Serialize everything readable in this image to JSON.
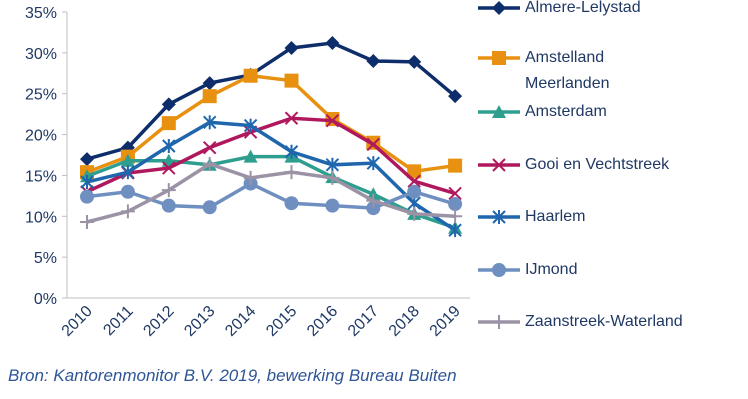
{
  "chart_data": {
    "type": "line",
    "source": "Bron: Kantorenmonitor B.V. 2019, bewerking Bureau Buiten",
    "categories": [
      "2010",
      "2011",
      "2012",
      "2013",
      "2014",
      "2015",
      "2016",
      "2017",
      "2018",
      "2019"
    ],
    "ylim": [
      0,
      35
    ],
    "yticks": [
      {
        "value": 0,
        "label": "0%"
      },
      {
        "value": 5,
        "label": "5%"
      },
      {
        "value": 10,
        "label": "10%"
      },
      {
        "value": 15,
        "label": "15%"
      },
      {
        "value": 20,
        "label": "20%"
      },
      {
        "value": 25,
        "label": "25%"
      },
      {
        "value": 30,
        "label": "30%"
      },
      {
        "value": 35,
        "label": "35%"
      }
    ],
    "grid": false,
    "legend": "right",
    "series": [
      {
        "name": "Almere-Lelystad",
        "color": "#0d2d6b",
        "marker": "diamond",
        "values": [
          17,
          18.4,
          23.7,
          26.3,
          27.3,
          30.6,
          31.2,
          29,
          28.9,
          24.7
        ]
      },
      {
        "name": "Amstelland Meerlanden",
        "color": "#e8900f",
        "marker": "square",
        "values": [
          15.4,
          17.3,
          21.4,
          24.7,
          27.2,
          26.6,
          21.9,
          19,
          15.5,
          16.2
        ]
      },
      {
        "name": "Amsterdam",
        "color": "#2e9e8f",
        "marker": "triangle",
        "values": [
          14.9,
          16.8,
          16.8,
          16.3,
          17.3,
          17.3,
          14.8,
          12.7,
          10.3,
          8.6
        ]
      },
      {
        "name": "Gooi en Vechtstreek",
        "color": "#b0185e",
        "marker": "x",
        "values": [
          13,
          15.3,
          15.9,
          18.4,
          20.3,
          22,
          21.7,
          18.8,
          14.3,
          12.8
        ]
      },
      {
        "name": "Haarlem",
        "color": "#1f66ad",
        "marker": "star",
        "values": [
          14.2,
          15.4,
          18.6,
          21.5,
          21.1,
          17.9,
          16.3,
          16.5,
          11.6,
          8.3
        ]
      },
      {
        "name": "IJmond",
        "color": "#6f8fc0",
        "marker": "circle",
        "values": [
          12.4,
          13,
          11.3,
          11.1,
          14,
          11.6,
          11.3,
          11,
          13,
          11.5
        ]
      },
      {
        "name": "Zaanstreek-Waterland",
        "color": "#9b93a5",
        "marker": "plus",
        "values": [
          9.3,
          10.6,
          13.2,
          16.4,
          14.7,
          15.4,
          14.7,
          11.9,
          10.3,
          10
        ]
      }
    ]
  }
}
